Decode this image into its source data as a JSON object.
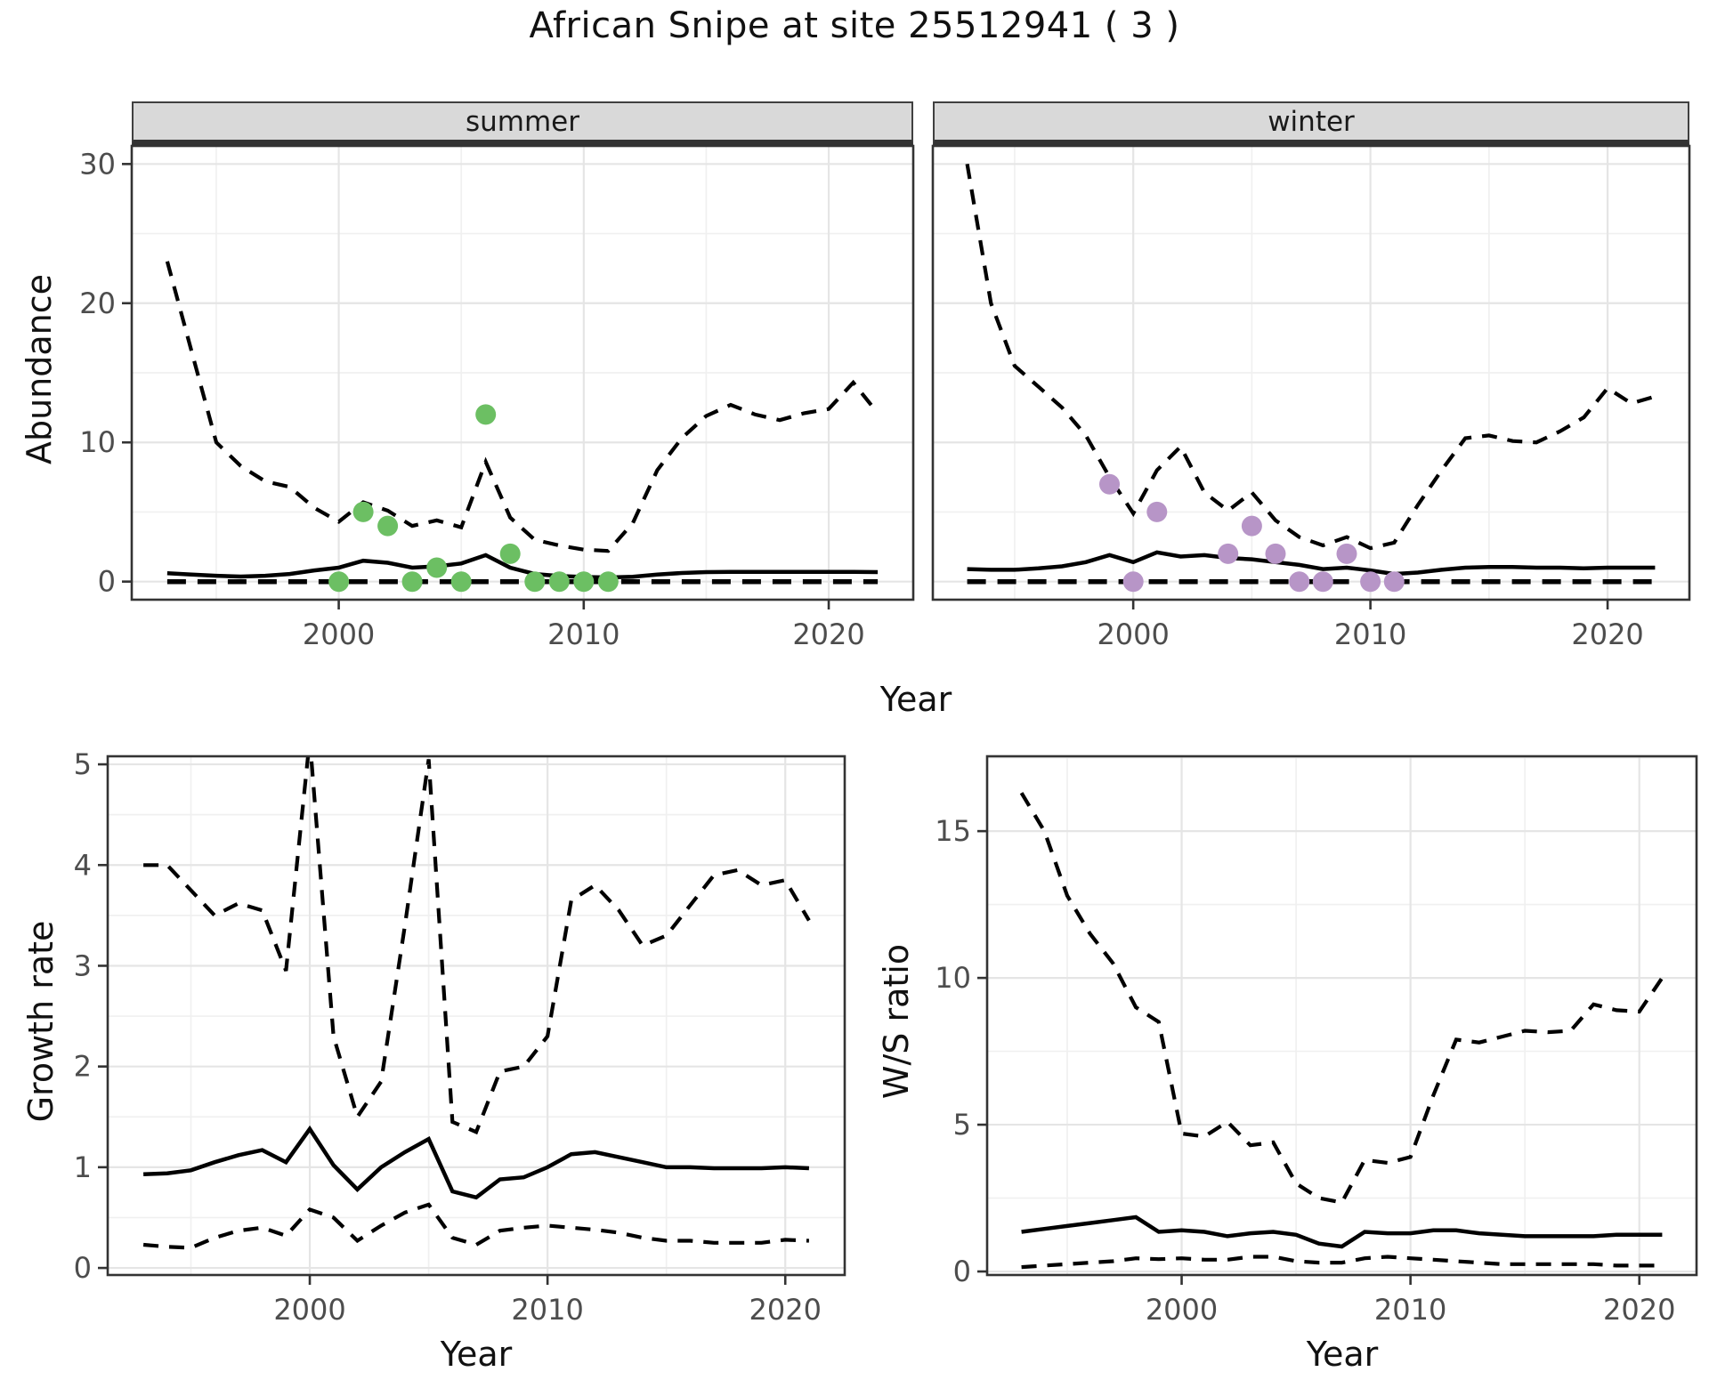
{
  "title": "African Snipe at site 25512941 ( 3 )",
  "colors": {
    "summer_points": "#6cbf63",
    "winter_points": "#b795c7",
    "line": "#000000",
    "grid_major": "#e5e5e5",
    "grid_minor": "#f0f0f0",
    "panel_border": "#333333",
    "tick": "#333333",
    "axis_text": "#4d4d4d",
    "strip_background": "#d9d9d9"
  },
  "chart_data": [
    {
      "type": "line",
      "title": "Abundance by season",
      "ylabel": "Abundance",
      "xlabel": "Year",
      "ylim": [
        -1.3,
        31.3
      ],
      "yticks": [
        0,
        10,
        20,
        30
      ],
      "yminor": [
        5,
        15,
        25
      ],
      "xlim": [
        1991.55,
        2023.45
      ],
      "xticks": [
        2000,
        2010,
        2020
      ],
      "xminor": [
        1995,
        2005,
        2015
      ],
      "grid": true,
      "legend": "none",
      "years": [
        1993,
        1994,
        1995,
        1996,
        1997,
        1998,
        1999,
        2000,
        2001,
        2002,
        2003,
        2004,
        2005,
        2006,
        2007,
        2008,
        2009,
        2010,
        2011,
        2012,
        2013,
        2014,
        2015,
        2016,
        2017,
        2018,
        2019,
        2020,
        2021,
        2022
      ],
      "facets": [
        {
          "label": "summer",
          "series": [
            {
              "name": "lower-ci",
              "style": "zero-dashed",
              "values": [
                0,
                0,
                0,
                0,
                0,
                0,
                0,
                0,
                0,
                0,
                0,
                0,
                0,
                0,
                0,
                0,
                0,
                0,
                0,
                0,
                0,
                0,
                0,
                0,
                0,
                0,
                0,
                0,
                0,
                0
              ]
            },
            {
              "name": "upper-ci",
              "style": "ci-dashed",
              "values": [
                23,
                16.5,
                10,
                8.3,
                7.2,
                6.8,
                5.3,
                4.3,
                5.7,
                5.1,
                4.0,
                4.4,
                3.9,
                8.6,
                4.6,
                3.0,
                2.6,
                2.3,
                2.2,
                4.2,
                8.0,
                10.3,
                11.9,
                12.7,
                12.0,
                11.6,
                12.1,
                12.4,
                14.3,
                12.1
              ]
            },
            {
              "name": "fitted-trend",
              "style": "fit-solid",
              "values": [
                0.6,
                0.5,
                0.42,
                0.36,
                0.42,
                0.55,
                0.8,
                1.0,
                1.5,
                1.35,
                1.0,
                1.1,
                1.3,
                1.9,
                1.0,
                0.55,
                0.4,
                0.33,
                0.3,
                0.35,
                0.5,
                0.62,
                0.68,
                0.7,
                0.7,
                0.7,
                0.7,
                0.7,
                0.7,
                0.68
              ]
            }
          ],
          "points": {
            "name": "observed-count",
            "color": "#6cbf63",
            "years": [
              2000,
              2001,
              2002,
              2003,
              2004,
              2005,
              2006,
              2007,
              2008,
              2009,
              2010,
              2011
            ],
            "values": [
              0,
              5,
              4,
              0,
              1,
              0,
              12,
              2,
              0,
              0,
              0,
              0
            ]
          }
        },
        {
          "label": "winter",
          "series": [
            {
              "name": "lower-ci",
              "style": "zero-dashed",
              "values": [
                0,
                0,
                0,
                0,
                0,
                0,
                0,
                0,
                0,
                0,
                0,
                0,
                0,
                0,
                0,
                0,
                0,
                0,
                0,
                0,
                0,
                0,
                0,
                0,
                0,
                0,
                0,
                0,
                0,
                0
              ]
            },
            {
              "name": "upper-ci",
              "style": "ci-dashed",
              "values": [
                30,
                20,
                15.5,
                14,
                12.5,
                10.5,
                7.5,
                4.9,
                8.0,
                9.7,
                6.4,
                5.1,
                6.4,
                4.4,
                3.2,
                2.6,
                3.2,
                2.4,
                2.8,
                5.5,
                8.0,
                10.3,
                10.5,
                10.1,
                10.0,
                10.8,
                11.8,
                13.9,
                12.8,
                13.3
              ]
            },
            {
              "name": "fitted-trend",
              "style": "fit-solid",
              "values": [
                0.9,
                0.85,
                0.85,
                0.95,
                1.1,
                1.4,
                1.9,
                1.4,
                2.1,
                1.8,
                1.9,
                1.7,
                1.6,
                1.4,
                1.2,
                0.9,
                1.0,
                0.8,
                0.55,
                0.65,
                0.85,
                1.0,
                1.05,
                1.05,
                1.0,
                1.0,
                0.95,
                1.0,
                1.0,
                1.0
              ]
            }
          ],
          "points": {
            "name": "observed-count",
            "color": "#b795c7",
            "years": [
              1999,
              2000,
              2001,
              2004,
              2005,
              2006,
              2007,
              2008,
              2009,
              2010,
              2011
            ],
            "values": [
              7,
              0,
              5,
              2,
              4,
              2,
              0,
              0,
              2,
              0,
              0
            ]
          }
        }
      ]
    },
    {
      "type": "line",
      "title": "Growth rate",
      "ylabel": "Growth rate",
      "xlabel": "Year",
      "ylim": [
        -0.07,
        5.08
      ],
      "yticks": [
        0,
        1,
        2,
        3,
        4,
        5
      ],
      "yminor": [
        0.5,
        1.5,
        2.5,
        3.5,
        4.5
      ],
      "xlim": [
        1991.5,
        2022.5
      ],
      "xticks": [
        2000,
        2010,
        2020
      ],
      "xminor": [
        1995,
        2005,
        2015
      ],
      "grid": true,
      "legend": "none",
      "years": [
        1993,
        1994,
        1995,
        1996,
        1997,
        1998,
        1999,
        2000,
        2001,
        2002,
        2003,
        2004,
        2005,
        2006,
        2007,
        2008,
        2009,
        2010,
        2011,
        2012,
        2013,
        2014,
        2015,
        2016,
        2017,
        2018,
        2019,
        2020,
        2021
      ],
      "series": [
        {
          "name": "lower-ci",
          "style": "ci-dashed",
          "values": [
            0.23,
            0.21,
            0.2,
            0.3,
            0.37,
            0.4,
            0.32,
            0.58,
            0.5,
            0.27,
            0.42,
            0.55,
            0.63,
            0.3,
            0.23,
            0.37,
            0.4,
            0.42,
            0.4,
            0.38,
            0.35,
            0.3,
            0.27,
            0.27,
            0.25,
            0.25,
            0.25,
            0.28,
            0.27
          ]
        },
        {
          "name": "upper-ci",
          "style": "ci-dashed",
          "values": [
            4.0,
            4.0,
            3.75,
            3.5,
            3.62,
            3.55,
            2.95,
            5.25,
            2.3,
            1.5,
            1.85,
            3.4,
            5.05,
            1.45,
            1.35,
            1.95,
            2.0,
            2.3,
            3.65,
            3.8,
            3.55,
            3.2,
            3.3,
            3.6,
            3.9,
            3.95,
            3.8,
            3.85,
            3.45
          ]
        },
        {
          "name": "fitted-trend",
          "style": "fit-solid",
          "values": [
            0.93,
            0.94,
            0.97,
            1.05,
            1.12,
            1.17,
            1.05,
            1.38,
            1.02,
            0.78,
            1.0,
            1.15,
            1.28,
            0.76,
            0.7,
            0.88,
            0.9,
            1.0,
            1.13,
            1.15,
            1.1,
            1.05,
            1.0,
            1.0,
            0.99,
            0.99,
            0.99,
            1.0,
            0.99
          ]
        }
      ]
    },
    {
      "type": "line",
      "title": "Winter/Summer ratio",
      "ylabel": "W/S ratio",
      "xlabel": "Year",
      "ylim": [
        -0.12,
        17.55
      ],
      "yticks": [
        0,
        5,
        10,
        15
      ],
      "yminor": [
        2.5,
        7.5,
        12.5,
        17.5
      ],
      "xlim": [
        1991.5,
        2022.5
      ],
      "xticks": [
        2000,
        2010,
        2020
      ],
      "xminor": [
        1995,
        2005,
        2015
      ],
      "grid": true,
      "legend": "none",
      "years": [
        1993,
        1994,
        1995,
        1996,
        1997,
        1998,
        1999,
        2000,
        2001,
        2002,
        2003,
        2004,
        2005,
        2006,
        2007,
        2008,
        2009,
        2010,
        2011,
        2012,
        2013,
        2014,
        2015,
        2016,
        2017,
        2018,
        2019,
        2020,
        2021
      ],
      "series": [
        {
          "name": "lower-ci",
          "style": "ci-dashed",
          "values": [
            0.15,
            0.2,
            0.25,
            0.3,
            0.35,
            0.45,
            0.42,
            0.45,
            0.4,
            0.4,
            0.5,
            0.5,
            0.35,
            0.3,
            0.3,
            0.45,
            0.5,
            0.45,
            0.4,
            0.35,
            0.3,
            0.25,
            0.25,
            0.25,
            0.25,
            0.25,
            0.2,
            0.2,
            0.2
          ]
        },
        {
          "name": "upper-ci",
          "style": "ci-dashed",
          "values": [
            16.3,
            15.0,
            12.8,
            11.5,
            10.5,
            9.0,
            8.5,
            4.7,
            4.6,
            5.1,
            4.3,
            4.4,
            3.0,
            2.5,
            2.35,
            3.8,
            3.7,
            3.9,
            6.0,
            7.9,
            7.8,
            8.0,
            8.2,
            8.15,
            8.2,
            9.1,
            8.9,
            8.85,
            10.0
          ]
        },
        {
          "name": "fitted-trend",
          "style": "fit-solid",
          "values": [
            1.35,
            1.45,
            1.55,
            1.65,
            1.75,
            1.85,
            1.35,
            1.4,
            1.35,
            1.2,
            1.3,
            1.35,
            1.25,
            0.95,
            0.85,
            1.35,
            1.3,
            1.3,
            1.4,
            1.4,
            1.3,
            1.25,
            1.2,
            1.2,
            1.2,
            1.2,
            1.25,
            1.25,
            1.25
          ]
        }
      ]
    }
  ]
}
